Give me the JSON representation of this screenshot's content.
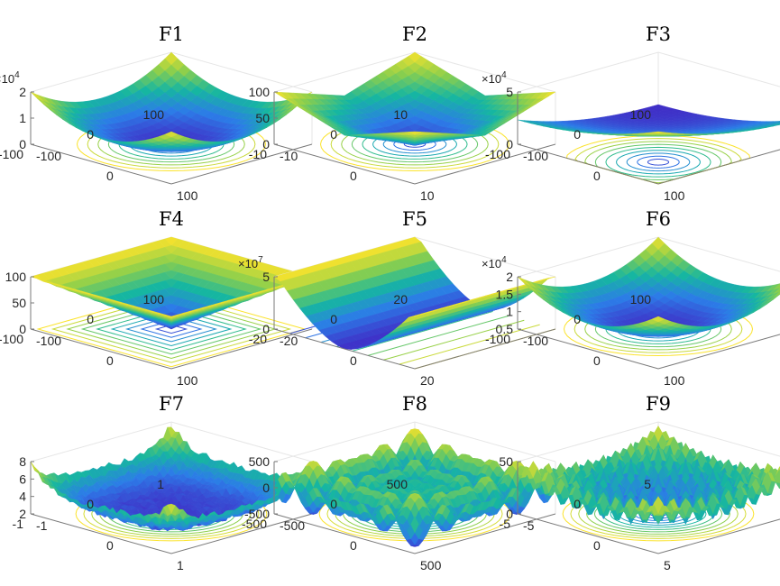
{
  "colors": {
    "surface_low": "#3f2fc7",
    "surface_mid": "#16b6a1",
    "surface_high": "#fbe32b",
    "contour_blue": "#3b7ae0",
    "contour_green": "#3fbf6b",
    "axis_gray": "#7a7a7a"
  },
  "chart_data": [
    {
      "type": "surface",
      "title": "F1",
      "exponent": "×10",
      "exponent_power": "4",
      "z_ticks": [
        "2",
        "1",
        "0"
      ],
      "left_ticks": [
        "100",
        "0",
        "-100"
      ],
      "right_ticks": [
        "-100",
        "0",
        "100"
      ],
      "shape": "bowl",
      "z_range": [
        0,
        2
      ],
      "xlim": [
        -100,
        100
      ],
      "ylim": [
        -100,
        100
      ]
    },
    {
      "type": "surface",
      "title": "F2",
      "exponent": "",
      "exponent_power": "",
      "z_ticks": [
        "100",
        "50",
        "0"
      ],
      "left_ticks": [
        "10",
        "0",
        "-10"
      ],
      "right_ticks": [
        "-10",
        "0",
        "10"
      ],
      "shape": "cross",
      "z_range": [
        0,
        100
      ],
      "xlim": [
        -10,
        10
      ],
      "ylim": [
        -10,
        10
      ]
    },
    {
      "type": "surface",
      "title": "F3",
      "exponent": "×10",
      "exponent_power": "4",
      "z_ticks": [
        "5",
        "0"
      ],
      "left_ticks": [
        "100",
        "0",
        "-100"
      ],
      "right_ticks": [
        "-100",
        "0",
        "100"
      ],
      "shape": "bowl-tilt",
      "z_range": [
        0,
        5
      ],
      "xlim": [
        -100,
        100
      ],
      "ylim": [
        -100,
        100
      ]
    },
    {
      "type": "surface",
      "title": "F4",
      "exponent": "",
      "exponent_power": "",
      "z_ticks": [
        "100",
        "50",
        "0"
      ],
      "left_ticks": [
        "100",
        "0",
        "-100"
      ],
      "right_ticks": [
        "-100",
        "0",
        "100"
      ],
      "shape": "pyramid",
      "z_range": [
        0,
        100
      ],
      "xlim": [
        -100,
        100
      ],
      "ylim": [
        -100,
        100
      ]
    },
    {
      "type": "surface",
      "title": "F5",
      "exponent": "×10",
      "exponent_power": "7",
      "z_ticks": [
        "5",
        "0"
      ],
      "left_ticks": [
        "20",
        "0",
        "-20"
      ],
      "right_ticks": [
        "-20",
        "0",
        "20"
      ],
      "shape": "valley",
      "z_range": [
        0,
        8
      ],
      "xlim": [
        -20,
        20
      ],
      "ylim": [
        -20,
        20
      ]
    },
    {
      "type": "surface",
      "title": "F6",
      "exponent": "×10",
      "exponent_power": "4",
      "z_ticks": [
        "2",
        "1.5",
        "1",
        "0.5"
      ],
      "left_ticks": [
        "100",
        "0",
        "-100"
      ],
      "right_ticks": [
        "-100",
        "0",
        "100"
      ],
      "shape": "bowl",
      "z_range": [
        0,
        2
      ],
      "xlim": [
        -100,
        100
      ],
      "ylim": [
        -100,
        100
      ]
    },
    {
      "type": "surface",
      "title": "F7",
      "exponent": "",
      "exponent_power": "",
      "z_ticks": [
        "8",
        "6",
        "4",
        "2"
      ],
      "left_ticks": [
        "1",
        "0",
        "-1"
      ],
      "right_ticks": [
        "-1",
        "0",
        "1"
      ],
      "shape": "noisy-bowl",
      "z_range": [
        0,
        8
      ],
      "xlim": [
        -1,
        1
      ],
      "ylim": [
        -1,
        1
      ]
    },
    {
      "type": "surface",
      "title": "F8",
      "exponent": "",
      "exponent_power": "",
      "z_ticks": [
        "500",
        "0",
        "-500"
      ],
      "left_ticks": [
        "500",
        "0",
        "-500"
      ],
      "right_ticks": [
        "-500",
        "0",
        "500"
      ],
      "shape": "schwefel",
      "z_range": [
        -800,
        800
      ],
      "xlim": [
        -500,
        500
      ],
      "ylim": [
        -500,
        500
      ]
    },
    {
      "type": "surface",
      "title": "F9",
      "exponent": "",
      "exponent_power": "",
      "z_ticks": [
        "50",
        "0"
      ],
      "left_ticks": [
        "5",
        "0",
        "-5"
      ],
      "right_ticks": [
        "-5",
        "0",
        "5"
      ],
      "shape": "rastrigin",
      "z_range": [
        0,
        80
      ],
      "xlim": [
        -5,
        5
      ],
      "ylim": [
        -5,
        5
      ]
    }
  ]
}
